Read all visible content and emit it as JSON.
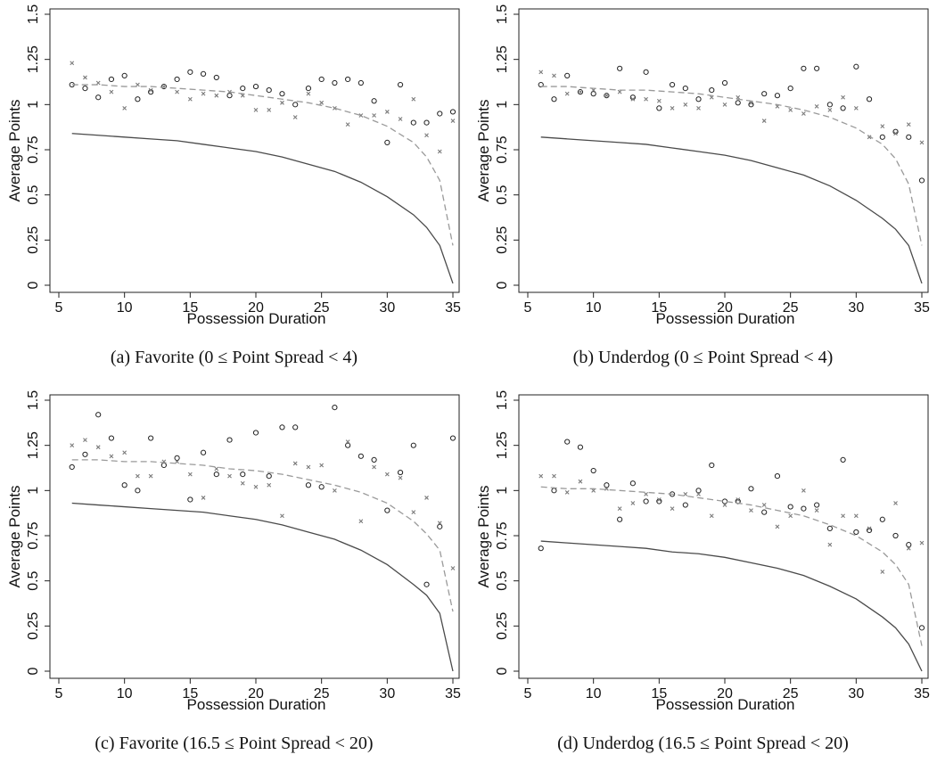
{
  "chart_data": [
    {
      "type": "scatter",
      "caption": "(a) Favorite (0 ≤ Point Spread < 4)",
      "xlabel": "Possession Duration",
      "ylabel": "Average Points",
      "xlim": [
        5,
        35
      ],
      "ylim": [
        0,
        1.5
      ],
      "x_ticks": [
        5,
        10,
        15,
        20,
        25,
        30,
        35
      ],
      "y_ticks": [
        0,
        0.25,
        0.5,
        0.75,
        1,
        1.25,
        1.5
      ],
      "y_tick_labels": [
        "0",
        "0.25",
        "0.5",
        "0.75",
        "1",
        "1.25",
        "1.5"
      ],
      "series": [
        {
          "marker": "circle",
          "x": [
            6,
            7,
            8,
            9,
            10,
            11,
            12,
            13,
            14,
            15,
            16,
            17,
            18,
            19,
            20,
            21,
            22,
            23,
            24,
            25,
            26,
            27,
            28,
            29,
            30,
            31,
            32,
            33,
            34,
            35
          ],
          "y": [
            1.11,
            1.09,
            1.04,
            1.14,
            1.16,
            1.03,
            1.07,
            1.1,
            1.14,
            1.18,
            1.17,
            1.15,
            1.05,
            1.09,
            1.1,
            1.08,
            1.06,
            1.0,
            1.09,
            1.14,
            1.12,
            1.14,
            1.12,
            1.02,
            0.79,
            1.11,
            0.9,
            0.9,
            0.95,
            0.96
          ]
        },
        {
          "marker": "x",
          "x": [
            6,
            7,
            8,
            9,
            10,
            11,
            12,
            13,
            14,
            15,
            16,
            17,
            18,
            19,
            20,
            21,
            22,
            23,
            24,
            25,
            26,
            27,
            28,
            29,
            30,
            31,
            32,
            33,
            34,
            35
          ],
          "y": [
            1.23,
            1.15,
            1.12,
            1.07,
            0.98,
            1.11,
            1.08,
            1.1,
            1.07,
            1.03,
            1.06,
            1.05,
            1.07,
            1.05,
            0.97,
            0.97,
            1.01,
            0.93,
            1.06,
            1.01,
            0.98,
            0.89,
            0.94,
            0.94,
            0.96,
            0.92,
            1.03,
            0.83,
            0.74,
            0.91
          ]
        },
        {
          "line": "dashed",
          "x": [
            6,
            8,
            10,
            12,
            14,
            16,
            18,
            20,
            22,
            24,
            26,
            28,
            30,
            32,
            33,
            34,
            35
          ],
          "y": [
            1.11,
            1.11,
            1.1,
            1.1,
            1.09,
            1.08,
            1.07,
            1.05,
            1.03,
            1.01,
            0.98,
            0.94,
            0.88,
            0.79,
            0.71,
            0.58,
            0.22
          ]
        },
        {
          "line": "solid",
          "x": [
            6,
            8,
            10,
            12,
            14,
            16,
            18,
            20,
            22,
            24,
            26,
            28,
            30,
            32,
            33,
            34,
            35
          ],
          "y": [
            0.84,
            0.83,
            0.82,
            0.81,
            0.8,
            0.78,
            0.76,
            0.74,
            0.71,
            0.67,
            0.63,
            0.57,
            0.49,
            0.39,
            0.32,
            0.22,
            0.01
          ]
        }
      ]
    },
    {
      "type": "scatter",
      "caption": "(b) Underdog (0 ≤ Point Spread < 4)",
      "xlabel": "Possession Duration",
      "ylabel": "Average Points",
      "xlim": [
        5,
        35
      ],
      "ylim": [
        0,
        1.5
      ],
      "x_ticks": [
        5,
        10,
        15,
        20,
        25,
        30,
        35
      ],
      "y_ticks": [
        0,
        0.25,
        0.5,
        0.75,
        1,
        1.25,
        1.5
      ],
      "y_tick_labels": [
        "0",
        "0.25",
        "0.5",
        "0.75",
        "1",
        "1.25",
        "1.5"
      ],
      "series": [
        {
          "marker": "circle",
          "x": [
            6,
            7,
            8,
            9,
            10,
            11,
            12,
            13,
            14,
            15,
            16,
            17,
            18,
            19,
            20,
            21,
            22,
            23,
            24,
            25,
            26,
            27,
            28,
            29,
            30,
            31,
            32,
            33,
            34,
            35
          ],
          "y": [
            1.11,
            1.03,
            1.16,
            1.07,
            1.06,
            1.05,
            1.2,
            1.04,
            1.18,
            0.98,
            1.11,
            1.09,
            1.03,
            1.08,
            1.12,
            1.01,
            1.0,
            1.06,
            1.05,
            1.09,
            1.2,
            1.2,
            1.0,
            0.98,
            1.21,
            1.03,
            0.82,
            0.85,
            0.82,
            0.58
          ]
        },
        {
          "marker": "x",
          "x": [
            6,
            7,
            8,
            9,
            10,
            11,
            12,
            13,
            14,
            15,
            16,
            17,
            18,
            19,
            20,
            21,
            22,
            23,
            24,
            25,
            26,
            27,
            28,
            29,
            30,
            31,
            32,
            33,
            34,
            35
          ],
          "y": [
            1.18,
            1.16,
            1.06,
            1.07,
            1.08,
            1.05,
            1.07,
            1.03,
            1.03,
            1.02,
            0.98,
            1.0,
            0.98,
            1.04,
            1.0,
            1.04,
            1.01,
            0.91,
            0.99,
            0.97,
            0.95,
            0.99,
            0.97,
            1.04,
            0.98,
            0.82,
            0.88,
            0.84,
            0.89,
            0.79
          ]
        },
        {
          "line": "dashed",
          "x": [
            6,
            8,
            10,
            12,
            14,
            16,
            18,
            20,
            22,
            24,
            26,
            28,
            30,
            32,
            33,
            34,
            35
          ],
          "y": [
            1.1,
            1.1,
            1.09,
            1.08,
            1.08,
            1.07,
            1.06,
            1.04,
            1.02,
            1.0,
            0.97,
            0.93,
            0.87,
            0.78,
            0.7,
            0.56,
            0.22
          ]
        },
        {
          "line": "solid",
          "x": [
            6,
            8,
            10,
            12,
            14,
            16,
            18,
            20,
            22,
            24,
            26,
            28,
            30,
            32,
            33,
            34,
            35
          ],
          "y": [
            0.82,
            0.81,
            0.8,
            0.79,
            0.78,
            0.76,
            0.74,
            0.72,
            0.69,
            0.65,
            0.61,
            0.55,
            0.47,
            0.37,
            0.31,
            0.22,
            0.01
          ]
        }
      ]
    },
    {
      "type": "scatter",
      "caption": "(c) Favorite (16.5 ≤ Point Spread < 20)",
      "xlabel": "Possession Duration",
      "ylabel": "Average Points",
      "xlim": [
        5,
        35
      ],
      "ylim": [
        0,
        1.5
      ],
      "x_ticks": [
        5,
        10,
        15,
        20,
        25,
        30,
        35
      ],
      "y_ticks": [
        0,
        0.25,
        0.5,
        0.75,
        1,
        1.25,
        1.5
      ],
      "y_tick_labels": [
        "0",
        "0.25",
        "0.5",
        "0.75",
        "1",
        "1.25",
        "1.5"
      ],
      "series": [
        {
          "marker": "circle",
          "x": [
            6,
            7,
            8,
            9,
            10,
            11,
            12,
            13,
            14,
            15,
            16,
            17,
            18,
            19,
            20,
            21,
            22,
            23,
            24,
            25,
            26,
            27,
            28,
            29,
            30,
            31,
            32,
            33,
            34,
            35
          ],
          "y": [
            1.13,
            1.2,
            1.42,
            1.29,
            1.03,
            1.0,
            1.29,
            1.14,
            1.18,
            0.95,
            1.21,
            1.09,
            1.28,
            1.09,
            1.32,
            1.08,
            1.35,
            1.35,
            1.03,
            1.02,
            1.46,
            1.25,
            1.19,
            1.17,
            0.89,
            1.1,
            1.25,
            0.48,
            0.8,
            1.29
          ]
        },
        {
          "marker": "x",
          "x": [
            6,
            7,
            8,
            9,
            10,
            11,
            12,
            13,
            14,
            15,
            16,
            17,
            18,
            19,
            20,
            21,
            22,
            23,
            24,
            25,
            26,
            27,
            28,
            29,
            30,
            31,
            32,
            33,
            34,
            35
          ],
          "y": [
            1.25,
            1.28,
            1.24,
            1.19,
            1.21,
            1.08,
            1.08,
            1.16,
            1.16,
            1.09,
            0.96,
            1.12,
            1.08,
            1.04,
            1.02,
            1.03,
            0.86,
            1.15,
            1.13,
            1.14,
            1.0,
            1.27,
            0.83,
            1.13,
            1.09,
            1.07,
            0.88,
            0.96,
            0.82,
            0.57
          ]
        },
        {
          "line": "dashed",
          "x": [
            6,
            8,
            10,
            12,
            14,
            16,
            18,
            20,
            22,
            24,
            26,
            28,
            30,
            32,
            33,
            34,
            35
          ],
          "y": [
            1.17,
            1.17,
            1.16,
            1.16,
            1.15,
            1.14,
            1.12,
            1.11,
            1.09,
            1.06,
            1.03,
            0.99,
            0.93,
            0.83,
            0.76,
            0.67,
            0.33
          ]
        },
        {
          "line": "solid",
          "x": [
            6,
            8,
            10,
            12,
            14,
            16,
            18,
            20,
            22,
            24,
            26,
            28,
            30,
            32,
            33,
            34,
            35
          ],
          "y": [
            0.93,
            0.92,
            0.91,
            0.9,
            0.89,
            0.88,
            0.86,
            0.84,
            0.81,
            0.77,
            0.73,
            0.67,
            0.59,
            0.48,
            0.42,
            0.32,
            0.0
          ]
        }
      ]
    },
    {
      "type": "scatter",
      "caption": "(d) Underdog (16.5 ≤ Point Spread < 20)",
      "xlabel": "Possession Duration",
      "ylabel": "Average Points",
      "xlim": [
        5,
        35
      ],
      "ylim": [
        0,
        1.5
      ],
      "x_ticks": [
        5,
        10,
        15,
        20,
        25,
        30,
        35
      ],
      "y_ticks": [
        0,
        0.25,
        0.5,
        0.75,
        1,
        1.25,
        1.5
      ],
      "y_tick_labels": [
        "0",
        "0.25",
        "0.5",
        "0.75",
        "1",
        "1.25",
        "1.5"
      ],
      "series": [
        {
          "marker": "circle",
          "x": [
            6,
            7,
            8,
            9,
            10,
            11,
            12,
            13,
            14,
            15,
            16,
            17,
            18,
            19,
            20,
            21,
            22,
            23,
            24,
            25,
            26,
            27,
            28,
            29,
            30,
            31,
            32,
            33,
            34,
            35
          ],
          "y": [
            0.68,
            1.0,
            1.27,
            1.24,
            1.11,
            1.03,
            0.84,
            1.04,
            0.94,
            0.94,
            0.98,
            0.92,
            1.0,
            1.14,
            0.94,
            0.94,
            1.01,
            0.88,
            1.08,
            0.91,
            0.9,
            0.92,
            0.79,
            1.17,
            0.77,
            0.78,
            0.84,
            0.75,
            0.7,
            0.24
          ]
        },
        {
          "marker": "x",
          "x": [
            6,
            7,
            8,
            9,
            10,
            11,
            12,
            13,
            14,
            15,
            16,
            17,
            18,
            19,
            20,
            21,
            22,
            23,
            24,
            25,
            26,
            27,
            28,
            29,
            30,
            31,
            32,
            33,
            34,
            35
          ],
          "y": [
            1.08,
            1.08,
            0.99,
            1.05,
            1.0,
            1.01,
            0.9,
            0.93,
            0.98,
            0.95,
            0.9,
            0.98,
            0.98,
            0.86,
            0.92,
            0.95,
            0.89,
            0.92,
            0.8,
            0.86,
            1.0,
            0.89,
            0.7,
            0.86,
            0.86,
            0.79,
            0.55,
            0.93,
            0.68,
            0.71
          ]
        },
        {
          "line": "dashed",
          "x": [
            6,
            8,
            10,
            12,
            14,
            16,
            18,
            20,
            22,
            24,
            26,
            28,
            30,
            32,
            33,
            34,
            35
          ],
          "y": [
            1.02,
            1.01,
            1.01,
            1.0,
            0.99,
            0.98,
            0.96,
            0.94,
            0.92,
            0.89,
            0.86,
            0.81,
            0.75,
            0.66,
            0.59,
            0.48,
            0.14
          ]
        },
        {
          "line": "solid",
          "x": [
            6,
            8,
            10,
            12,
            14,
            16,
            18,
            20,
            22,
            24,
            26,
            28,
            30,
            32,
            33,
            34,
            35
          ],
          "y": [
            0.72,
            0.71,
            0.7,
            0.69,
            0.68,
            0.66,
            0.65,
            0.63,
            0.6,
            0.57,
            0.53,
            0.47,
            0.4,
            0.3,
            0.24,
            0.15,
            0.0
          ]
        }
      ]
    }
  ]
}
